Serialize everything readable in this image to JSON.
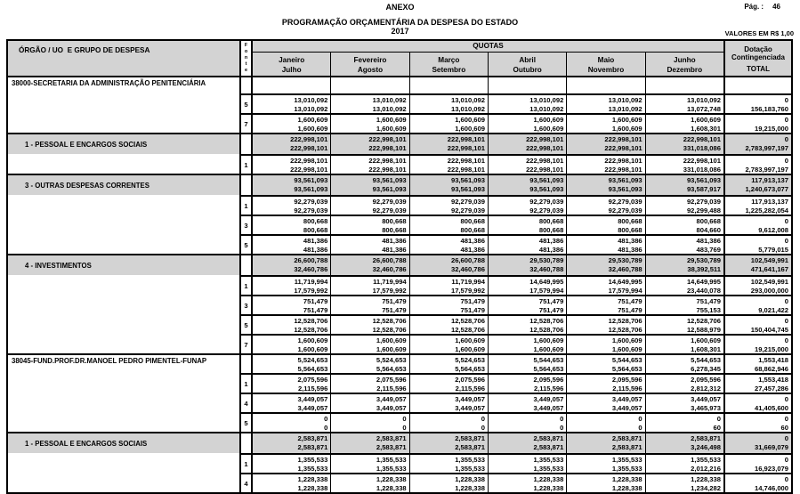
{
  "page": {
    "anexo": "ANEXO",
    "page_label": "Pág. :",
    "page_number": "46",
    "title": "PROGRAMAÇÃO ORÇAMENTÁRIA DA DESPESA DO ESTADO",
    "year": "2017",
    "values_note": "VALORES EM R$ 1,00"
  },
  "table": {
    "org_header": "ÓRGÃO / UO  E GRUPO DE DESPESA",
    "fonte_header": "Fonte",
    "quotas_header": "QUOTAS",
    "months": [
      [
        "Janeiro",
        "Julho"
      ],
      [
        "Fevereiro",
        "Agosto"
      ],
      [
        "Março",
        "Setembro"
      ],
      [
        "Abril",
        "Outubro"
      ],
      [
        "Maio",
        "Novembro"
      ],
      [
        "Junho",
        "Dezembro"
      ]
    ],
    "total_header": [
      "Dotação",
      "Contingenciada",
      "TOTAL"
    ],
    "rows": [
      {
        "type": "entity",
        "label": "38000-SECRETARIA DA ADMINISTRAÇÃO PENITENCIÁRIA",
        "fonte": "",
        "line1": [],
        "line2": []
      },
      {
        "type": "fonte",
        "label": "",
        "fonte": "5",
        "line1": [
          "13,010,092",
          "13,010,092",
          "13,010,092",
          "13,010,092",
          "13,010,092",
          "13,010,092",
          "0"
        ],
        "line2": [
          "13,010,092",
          "13,010,092",
          "13,010,092",
          "13,010,092",
          "13,010,092",
          "13,072,748",
          "156,183,760"
        ]
      },
      {
        "type": "fonte",
        "label": "",
        "fonte": "7",
        "line1": [
          "1,600,609",
          "1,600,609",
          "1,600,609",
          "1,600,609",
          "1,600,609",
          "1,600,609",
          "0"
        ],
        "line2": [
          "1,600,609",
          "1,600,609",
          "1,600,609",
          "1,600,609",
          "1,600,609",
          "1,608,301",
          "19,215,000"
        ]
      },
      {
        "type": "group",
        "label": "1 - PESSOAL E ENCARGOS SOCIAIS",
        "fonte": "",
        "line1": [
          "222,998,101",
          "222,998,101",
          "222,998,101",
          "222,998,101",
          "222,998,101",
          "222,998,101",
          "0"
        ],
        "line2": [
          "222,998,101",
          "222,998,101",
          "222,998,101",
          "222,998,101",
          "222,998,101",
          "331,018,086",
          "2,783,997,197"
        ]
      },
      {
        "type": "fonte",
        "label": "",
        "fonte": "1",
        "line1": [
          "222,998,101",
          "222,998,101",
          "222,998,101",
          "222,998,101",
          "222,998,101",
          "222,998,101",
          "0"
        ],
        "line2": [
          "222,998,101",
          "222,998,101",
          "222,998,101",
          "222,998,101",
          "222,998,101",
          "331,018,086",
          "2,783,997,197"
        ]
      },
      {
        "type": "group",
        "label": "3 - OUTRAS DESPESAS CORRENTES",
        "fonte": "",
        "line1": [
          "93,561,093",
          "93,561,093",
          "93,561,093",
          "93,561,093",
          "93,561,093",
          "93,561,093",
          "117,913,137"
        ],
        "line2": [
          "93,561,093",
          "93,561,093",
          "93,561,093",
          "93,561,093",
          "93,561,093",
          "93,587,917",
          "1,240,673,077"
        ]
      },
      {
        "type": "fonte",
        "label": "",
        "fonte": "1",
        "line1": [
          "92,279,039",
          "92,279,039",
          "92,279,039",
          "92,279,039",
          "92,279,039",
          "92,279,039",
          "117,913,137"
        ],
        "line2": [
          "92,279,039",
          "92,279,039",
          "92,279,039",
          "92,279,039",
          "92,279,039",
          "92,299,488",
          "1,225,282,054"
        ]
      },
      {
        "type": "fonte",
        "label": "",
        "fonte": "3",
        "line1": [
          "800,668",
          "800,668",
          "800,668",
          "800,668",
          "800,668",
          "800,668",
          "0"
        ],
        "line2": [
          "800,668",
          "800,668",
          "800,668",
          "800,668",
          "800,668",
          "804,660",
          "9,612,008"
        ]
      },
      {
        "type": "fonte",
        "label": "",
        "fonte": "5",
        "line1": [
          "481,386",
          "481,386",
          "481,386",
          "481,386",
          "481,386",
          "481,386",
          "0"
        ],
        "line2": [
          "481,386",
          "481,386",
          "481,386",
          "481,386",
          "481,386",
          "483,769",
          "5,779,015"
        ]
      },
      {
        "type": "group",
        "label": "4 - INVESTIMENTOS",
        "fonte": "",
        "line1": [
          "26,600,788",
          "26,600,788",
          "26,600,788",
          "29,530,789",
          "29,530,789",
          "29,530,789",
          "102,549,991"
        ],
        "line2": [
          "32,460,786",
          "32,460,786",
          "32,460,786",
          "32,460,788",
          "32,460,788",
          "38,392,511",
          "471,641,167"
        ]
      },
      {
        "type": "fonte",
        "label": "",
        "fonte": "1",
        "line1": [
          "11,719,994",
          "11,719,994",
          "11,719,994",
          "14,649,995",
          "14,649,995",
          "14,649,995",
          "102,549,991"
        ],
        "line2": [
          "17,579,992",
          "17,579,992",
          "17,579,992",
          "17,579,994",
          "17,579,994",
          "23,440,078",
          "293,000,000"
        ]
      },
      {
        "type": "fonte",
        "label": "",
        "fonte": "3",
        "line1": [
          "751,479",
          "751,479",
          "751,479",
          "751,479",
          "751,479",
          "751,479",
          "0"
        ],
        "line2": [
          "751,479",
          "751,479",
          "751,479",
          "751,479",
          "751,479",
          "755,153",
          "9,021,422"
        ]
      },
      {
        "type": "fonte",
        "label": "",
        "fonte": "5",
        "line1": [
          "12,528,706",
          "12,528,706",
          "12,528,706",
          "12,528,706",
          "12,528,706",
          "12,528,706",
          "0"
        ],
        "line2": [
          "12,528,706",
          "12,528,706",
          "12,528,706",
          "12,528,706",
          "12,528,706",
          "12,588,979",
          "150,404,745"
        ]
      },
      {
        "type": "fonte",
        "label": "",
        "fonte": "7",
        "line1": [
          "1,600,609",
          "1,600,609",
          "1,600,609",
          "1,600,609",
          "1,600,609",
          "1,600,609",
          "0"
        ],
        "line2": [
          "1,600,609",
          "1,600,609",
          "1,600,609",
          "1,600,609",
          "1,600,609",
          "1,608,301",
          "19,215,000"
        ]
      },
      {
        "type": "entity",
        "label": "38045-FUND.PROF.DR.MANOEL PEDRO PIMENTEL-FUNAP",
        "fonte": "",
        "line1": [
          "5,524,653",
          "5,524,653",
          "5,524,653",
          "5,544,653",
          "5,544,653",
          "5,544,653",
          "1,553,418"
        ],
        "line2": [
          "5,564,653",
          "5,564,653",
          "5,564,653",
          "5,564,653",
          "5,564,653",
          "6,278,345",
          "68,862,946"
        ]
      },
      {
        "type": "fonte",
        "label": "",
        "fonte": "1",
        "line1": [
          "2,075,596",
          "2,075,596",
          "2,075,596",
          "2,095,596",
          "2,095,596",
          "2,095,596",
          "1,553,418"
        ],
        "line2": [
          "2,115,596",
          "2,115,596",
          "2,115,596",
          "2,115,596",
          "2,115,596",
          "2,812,312",
          "27,457,286"
        ]
      },
      {
        "type": "fonte",
        "label": "",
        "fonte": "4",
        "line1": [
          "3,449,057",
          "3,449,057",
          "3,449,057",
          "3,449,057",
          "3,449,057",
          "3,449,057",
          "0"
        ],
        "line2": [
          "3,449,057",
          "3,449,057",
          "3,449,057",
          "3,449,057",
          "3,449,057",
          "3,465,973",
          "41,405,600"
        ]
      },
      {
        "type": "fonte",
        "label": "",
        "fonte": "5",
        "line1": [
          "0",
          "0",
          "0",
          "0",
          "0",
          "0",
          "0"
        ],
        "line2": [
          "0",
          "0",
          "0",
          "0",
          "0",
          "60",
          "60"
        ]
      },
      {
        "type": "group",
        "label": "1 - PESSOAL E ENCARGOS SOCIAIS",
        "fonte": "",
        "line1": [
          "2,583,871",
          "2,583,871",
          "2,583,871",
          "2,583,871",
          "2,583,871",
          "2,583,871",
          "0"
        ],
        "line2": [
          "2,583,871",
          "2,583,871",
          "2,583,871",
          "2,583,871",
          "2,583,871",
          "3,246,498",
          "31,669,079"
        ]
      },
      {
        "type": "fonte",
        "label": "",
        "fonte": "1",
        "line1": [
          "1,355,533",
          "1,355,533",
          "1,355,533",
          "1,355,533",
          "1,355,533",
          "1,355,533",
          "0"
        ],
        "line2": [
          "1,355,533",
          "1,355,533",
          "1,355,533",
          "1,355,533",
          "1,355,533",
          "2,012,216",
          "16,923,079"
        ]
      },
      {
        "type": "fonte",
        "label": "",
        "fonte": "4",
        "line1": [
          "1,228,338",
          "1,228,338",
          "1,228,338",
          "1,228,338",
          "1,228,338",
          "1,228,338",
          "0"
        ],
        "line2": [
          "1,228,338",
          "1,228,338",
          "1,228,338",
          "1,228,338",
          "1,228,338",
          "1,234,282",
          "14,746,000"
        ]
      }
    ]
  }
}
